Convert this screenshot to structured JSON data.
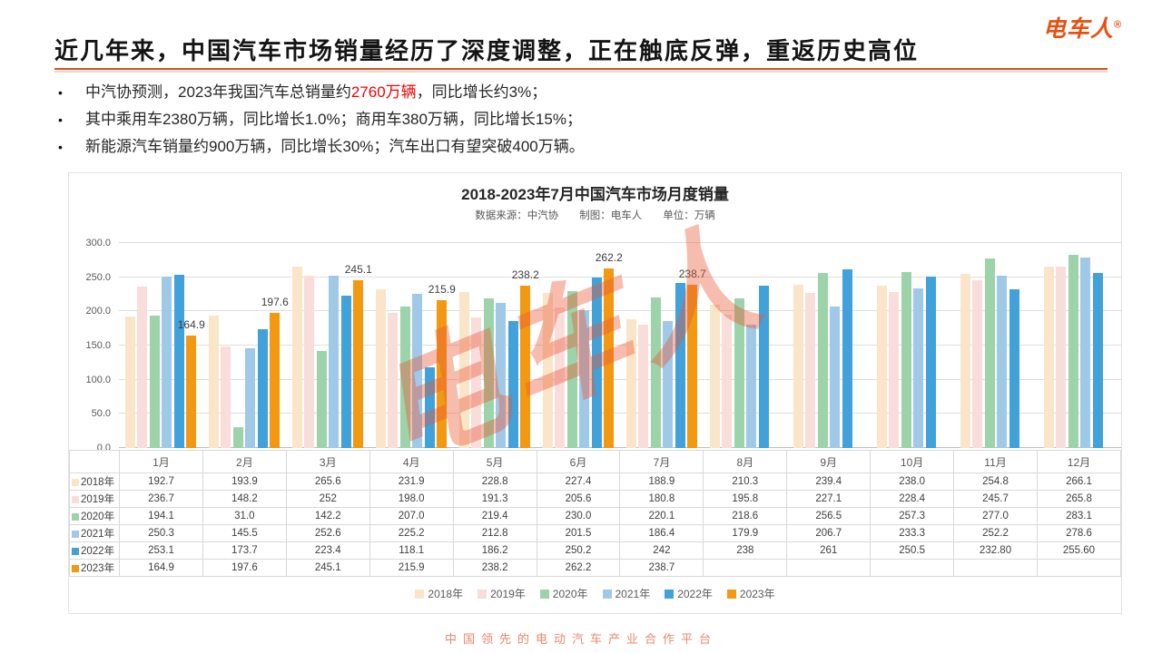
{
  "logo": {
    "text": "电车人",
    "registered": "®"
  },
  "header": {
    "title": "近几年来，中国汽车市场销量经历了深度调整，正在触底反弹，重返历史高位"
  },
  "bullets": [
    {
      "marker": "•",
      "prefix": "中汽协预测，2023年我国汽车总销量约",
      "highlight": "2760万辆",
      "suffix": "，同比增长约3%；"
    },
    {
      "marker": "•",
      "prefix": "其中乘用车2380万辆，同比增长1.0%；商用车380万辆，同比增长15%；",
      "highlight": "",
      "suffix": ""
    },
    {
      "marker": "•",
      "prefix": "新能源汽车销量约900万辆，同比增长30%；汽车出口有望突破400万辆。",
      "highlight": "",
      "suffix": ""
    }
  ],
  "watermark": {
    "text": "电车人"
  },
  "footer": {
    "text": "中国领先的电动汽车产业合作平台"
  },
  "chart_data": {
    "type": "bar",
    "title": "2018-2023年7月中国汽车市场月度销量",
    "subtitle": "数据来源：中汽协　　制图：电车人　　单位：万辆",
    "unit": "万辆",
    "categories": [
      "1月",
      "2月",
      "3月",
      "4月",
      "5月",
      "6月",
      "7月",
      "8月",
      "9月",
      "10月",
      "11月",
      "12月"
    ],
    "ylim": [
      0,
      300
    ],
    "ytick_step": 50,
    "grid": true,
    "legend_position": "bottom",
    "series": [
      {
        "name": "2018年",
        "color": "#FBE5C8",
        "values": [
          192.7,
          193.9,
          265.6,
          231.9,
          228.8,
          227.4,
          188.9,
          210.3,
          239.4,
          238.0,
          254.8,
          266.1
        ],
        "display": [
          "192.7",
          "193.9",
          "265.6",
          "231.9",
          "228.8",
          "227.4",
          "188.9",
          "210.3",
          "239.4",
          "238.0",
          "254.8",
          "266.1"
        ]
      },
      {
        "name": "2019年",
        "color": "#F9DDDB",
        "values": [
          236.7,
          148.2,
          252,
          198.0,
          191.3,
          205.6,
          180.8,
          195.8,
          227.1,
          228.4,
          245.7,
          265.8
        ],
        "display": [
          "236.7",
          "148.2",
          "252",
          "198.0",
          "191.3",
          "205.6",
          "180.8",
          "195.8",
          "227.1",
          "228.4",
          "245.7",
          "265.8"
        ]
      },
      {
        "name": "2020年",
        "color": "#9DD3A8",
        "values": [
          194.1,
          31.0,
          142.2,
          207.0,
          219.4,
          230.0,
          220.1,
          218.6,
          256.5,
          257.3,
          277.0,
          283.1
        ],
        "display": [
          "194.1",
          "31.0",
          "142.2",
          "207.0",
          "219.4",
          "230.0",
          "220.1",
          "218.6",
          "256.5",
          "257.3",
          "277.0",
          "283.1"
        ]
      },
      {
        "name": "2021年",
        "color": "#9FC9E7",
        "values": [
          250.3,
          145.5,
          252.6,
          225.2,
          212.8,
          201.5,
          186.4,
          179.9,
          206.7,
          233.3,
          252.2,
          278.6
        ],
        "display": [
          "250.3",
          "145.5",
          "252.6",
          "225.2",
          "212.8",
          "201.5",
          "186.4",
          "179.9",
          "206.7",
          "233.3",
          "252.2",
          "278.6"
        ]
      },
      {
        "name": "2022年",
        "color": "#41A1DA",
        "values": [
          253.1,
          173.7,
          223.4,
          118.1,
          186.2,
          250.2,
          242,
          238,
          261,
          250.5,
          232.8,
          255.6
        ],
        "display": [
          "253.1",
          "173.7",
          "223.4",
          "118.1",
          "186.2",
          "250.2",
          "242",
          "238",
          "261",
          "250.5",
          "232.80",
          "255.60"
        ]
      },
      {
        "name": "2023年",
        "color": "#F39811",
        "show_labels": true,
        "values": [
          164.9,
          197.6,
          245.1,
          215.9,
          238.2,
          262.2,
          238.7,
          null,
          null,
          null,
          null,
          null
        ],
        "display": [
          "164.9",
          "197.6",
          "245.1",
          "215.9",
          "238.2",
          "262.2",
          "238.7",
          "",
          "",
          "",
          "",
          ""
        ]
      }
    ]
  }
}
